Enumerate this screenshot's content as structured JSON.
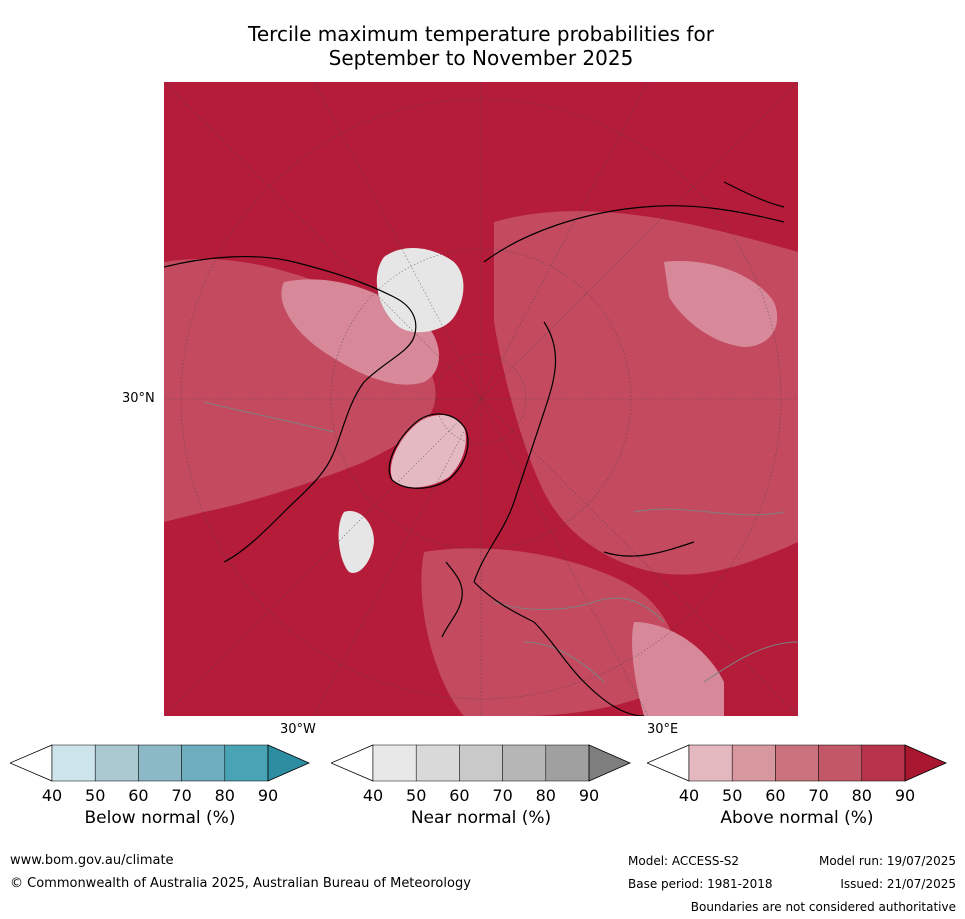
{
  "title_line1": "Tercile maximum temperature probabilities for",
  "title_line2": "September to November 2025",
  "map": {
    "labels": {
      "lat": "30°N",
      "lon_w": "30°W",
      "lon_e": "30°E"
    },
    "colors": {
      "base": "#b41c39",
      "mid": "#c44a60",
      "light": "#d7899a",
      "pale": "#e4b9c2",
      "near_normal": "#e6e6e6",
      "coast": "#000000",
      "border": "#808080",
      "grid": "#444444"
    }
  },
  "legends": [
    {
      "label": "Below normal (%)",
      "ticks": [
        "40",
        "50",
        "60",
        "70",
        "80",
        "90"
      ],
      "colors": [
        "#ffffff",
        "#cde4ea",
        "#a9c8cf",
        "#8bb9c5",
        "#6eadbd",
        "#48a3b4",
        "#2d8ea2"
      ]
    },
    {
      "label": "Near normal (%)",
      "ticks": [
        "40",
        "50",
        "60",
        "70",
        "80",
        "90"
      ],
      "colors": [
        "#ffffff",
        "#e8e8e8",
        "#d9d9d9",
        "#c9c9c9",
        "#b6b6b6",
        "#a0a0a0",
        "#7e7e7e"
      ]
    },
    {
      "label": "Above normal (%)",
      "ticks": [
        "40",
        "50",
        "60",
        "70",
        "80",
        "90"
      ],
      "colors": [
        "#ffffff",
        "#e3b8be",
        "#d7979f",
        "#ca737e",
        "#c15767",
        "#b7344c",
        "#a8172f"
      ]
    }
  ],
  "footer": {
    "url": "www.bom.gov.au/climate",
    "copyright": "© Commonwealth of Australia 2025, Australian Bureau of Meteorology",
    "model": "Model: ACCESS-S2",
    "base_period": "Base period: 1981-2018",
    "model_run": "Model run: 19/07/2025",
    "issued": "Issued: 21/07/2025",
    "disclaimer": "Boundaries are not considered authoritative"
  }
}
